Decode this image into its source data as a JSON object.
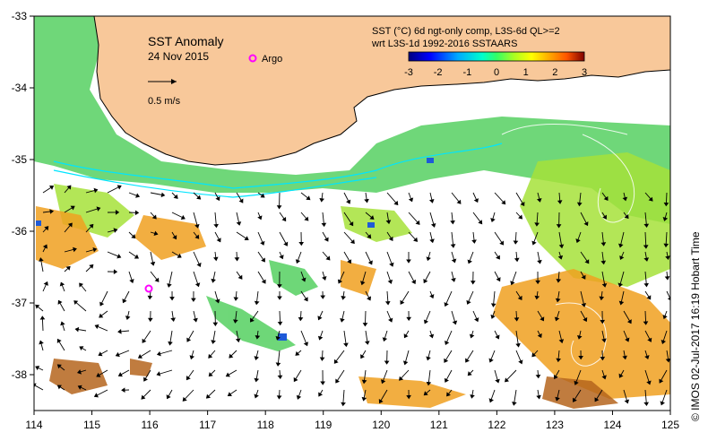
{
  "map": {
    "title": "SST Anomaly",
    "date": "24 Nov 2015",
    "argo_label": "Argo",
    "velocity_scale_label": "0.5 m/s",
    "colorbar_title_line1": "SST (°C) 6d ngt-only comp, L3S-6d QL>=2",
    "colorbar_title_line2": "wrt L3S-1d 1992-2016 SSTAARS",
    "colorbar_ticks": [
      "-3",
      "-2",
      "-1",
      "0",
      "1",
      "2",
      "3"
    ],
    "colorbar_colors": [
      "#00007f",
      "#0000ff",
      "#00aaff",
      "#00ffcc",
      "#33ff66",
      "#99ff33",
      "#ffff00",
      "#ffaa00",
      "#ff5500",
      "#cc2200",
      "#7f0000"
    ],
    "x_ticks": [
      "114",
      "115",
      "116",
      "117",
      "118",
      "119",
      "120",
      "121",
      "122",
      "123",
      "124",
      "125"
    ],
    "y_ticks": [
      "-33",
      "-34",
      "-35",
      "-36",
      "-37",
      "-38"
    ],
    "credit": "© IMOS 02-Jul-2017 16:19 Hobart Time",
    "colors": {
      "land": "#f8c89a",
      "ocean_blank": "#ffffff",
      "anomaly_green": "#5fd36a",
      "anomaly_lime": "#a6e23a",
      "anomaly_orange": "#f0a020",
      "anomaly_brown": "#b5651d",
      "argo": "#ff00ff",
      "front_line": "#00e5ff"
    }
  }
}
